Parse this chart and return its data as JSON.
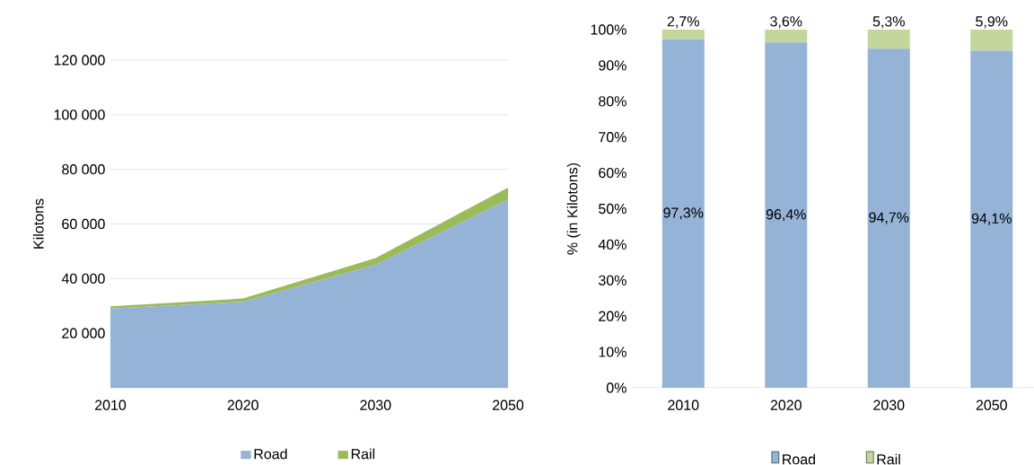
{
  "chart_data": [
    {
      "type": "area",
      "stacked": true,
      "ylabel": "Kilotons",
      "categories": [
        "2010",
        "2020",
        "2030",
        "2050"
      ],
      "series": [
        {
          "name": "Road",
          "color": "#95b3d7",
          "values": [
            29000,
            31500,
            45000,
            69000
          ]
        },
        {
          "name": "Rail",
          "color": "#9bbb59",
          "values": [
            800,
            1200,
            2500,
            4300
          ]
        }
      ],
      "ylim": [
        0,
        120000
      ],
      "yticks": [
        {
          "value": 20000,
          "label": "20 000"
        },
        {
          "value": 40000,
          "label": "40 000"
        },
        {
          "value": 60000,
          "label": "60 000"
        },
        {
          "value": 80000,
          "label": "80 000"
        },
        {
          "value": 100000,
          "label": "100 000"
        },
        {
          "value": 120000,
          "label": "120 000"
        }
      ],
      "grid": "y",
      "legend": "bottom"
    },
    {
      "type": "bar",
      "stacked": true,
      "ylabel": "% (in Kilotons)",
      "categories": [
        "2010",
        "2020",
        "2030",
        "2050"
      ],
      "series": [
        {
          "name": "Road",
          "color": "#95b3d7",
          "values": [
            97.3,
            96.4,
            94.7,
            94.1
          ],
          "value_labels": [
            "97,3%",
            "96,4%",
            "94,7%",
            "94,1%"
          ]
        },
        {
          "name": "Rail",
          "color": "#c3d69b",
          "values": [
            2.7,
            3.6,
            5.3,
            5.9
          ],
          "value_labels": [
            "2,7%",
            "3,6%",
            "5,3%",
            "5,9%"
          ]
        }
      ],
      "ylim": [
        0,
        100
      ],
      "yticks": [
        {
          "value": 0,
          "label": "0%"
        },
        {
          "value": 10,
          "label": "10%"
        },
        {
          "value": 20,
          "label": "20%"
        },
        {
          "value": 30,
          "label": "30%"
        },
        {
          "value": 40,
          "label": "40%"
        },
        {
          "value": 50,
          "label": "50%"
        },
        {
          "value": 60,
          "label": "60%"
        },
        {
          "value": 70,
          "label": "70%"
        },
        {
          "value": 80,
          "label": "80%"
        },
        {
          "value": 90,
          "label": "90%"
        },
        {
          "value": 100,
          "label": "100%"
        }
      ],
      "legend": "bottom"
    }
  ]
}
